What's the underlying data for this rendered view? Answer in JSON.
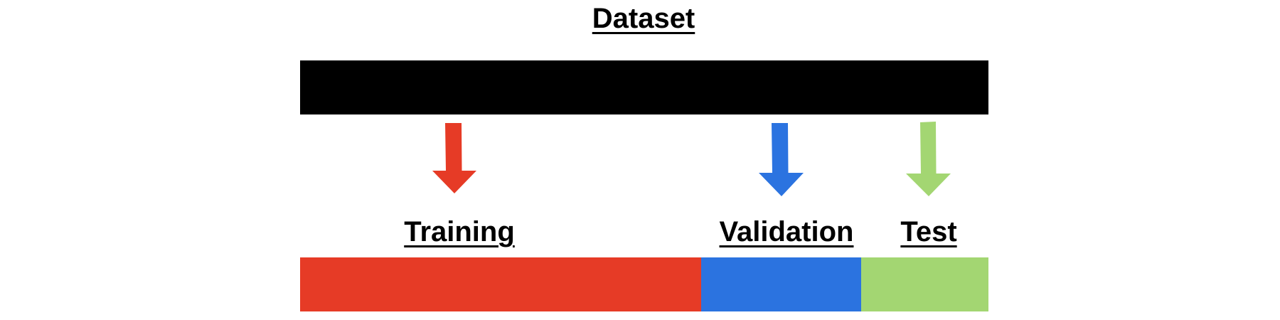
{
  "diagram": {
    "title": "Dataset",
    "colors": {
      "dataset": "#000000",
      "training": "#E63B26",
      "validation": "#2B73E0",
      "test": "#A3D672"
    },
    "splits": [
      {
        "label": "Training",
        "share": 0.583
      },
      {
        "label": "Validation",
        "share": 0.232
      },
      {
        "label": "Test",
        "share": 0.185
      }
    ]
  }
}
